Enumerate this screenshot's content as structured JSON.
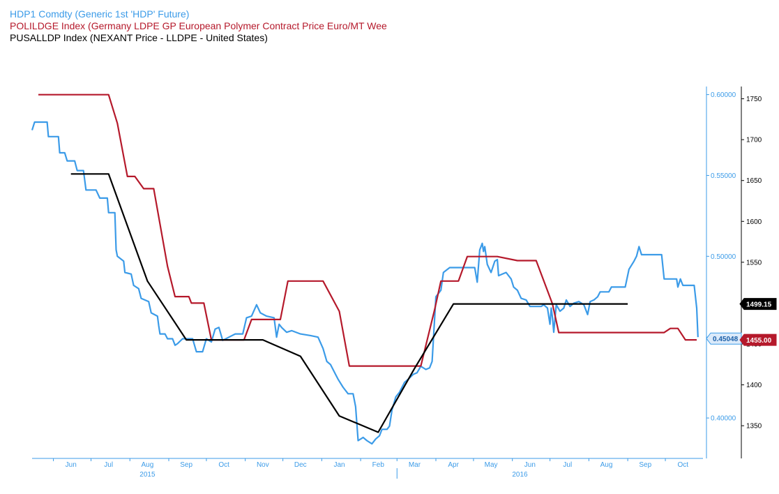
{
  "legend": [
    {
      "label": "HDP1 Comdty (Generic 1st 'HDP' Future)",
      "color": "#3b9be8"
    },
    {
      "label": "POLILDGE Index (Germany LDPE GP European Polymer Contract Price Euro/MT Wee",
      "color": "#b5192b"
    },
    {
      "label": "PUSALLDP Index (NEXANT Price - LLDPE - United States)",
      "color": "#000000"
    }
  ],
  "chart_data": {
    "type": "line",
    "title": "",
    "x_axis": {
      "type": "date",
      "range": [
        "2015-05-15",
        "2016-10-31"
      ],
      "tick_labels": [
        {
          "label": "Jun",
          "date": "2015-06-15"
        },
        {
          "label": "Jul",
          "date": "2015-07-15"
        },
        {
          "label": "Aug",
          "date": "2015-08-15"
        },
        {
          "label": "Sep",
          "date": "2015-09-15"
        },
        {
          "label": "Oct",
          "date": "2015-10-15"
        },
        {
          "label": "Nov",
          "date": "2015-11-15"
        },
        {
          "label": "Dec",
          "date": "2015-12-15"
        },
        {
          "label": "Jan",
          "date": "2016-01-15"
        },
        {
          "label": "Feb",
          "date": "2016-02-15"
        },
        {
          "label": "Mar",
          "date": "2016-03-15"
        },
        {
          "label": "Apr",
          "date": "2016-04-15"
        },
        {
          "label": "May",
          "date": "2016-05-15"
        },
        {
          "label": "Jun",
          "date": "2016-06-15"
        },
        {
          "label": "Jul",
          "date": "2016-07-15"
        },
        {
          "label": "Aug",
          "date": "2016-08-15"
        },
        {
          "label": "Sep",
          "date": "2016-09-15"
        },
        {
          "label": "Oct",
          "date": "2016-10-15"
        }
      ],
      "year_labels": [
        {
          "label": "2015",
          "date": "2015-08-15"
        },
        {
          "label": "2016",
          "date": "2016-06-07"
        }
      ],
      "year_divider": "2016-03-01"
    },
    "y_axes": {
      "left_blue": {
        "range": [
          0.375,
          0.605
        ],
        "ticks": [
          0.4,
          0.45,
          0.5,
          0.55,
          0.6
        ],
        "tick_labels": [
          "0.40000",
          "0.45000",
          "0.50000",
          "0.55000",
          "0.60000"
        ],
        "color": "#3b9be8"
      },
      "right_black": {
        "range": [
          1310,
          1765
        ],
        "ticks": [
          1350,
          1400,
          1450,
          1500,
          1550,
          1600,
          1650,
          1700,
          1750
        ],
        "tick_labels": [
          "1350",
          "1400",
          "1450",
          "1500",
          "1550",
          "1600",
          "1650",
          "1700",
          "1750"
        ],
        "color": "#000000"
      }
    },
    "series": [
      {
        "name": "HDP1 Comdty (Generic 1st 'HDP' Future)",
        "axis": "left_blue",
        "color": "#3b9be8",
        "last_value_label": "0.45048",
        "points": [
          [
            "2015-05-15",
            0.578
          ],
          [
            "2015-05-17",
            0.583
          ],
          [
            "2015-05-27",
            0.583
          ],
          [
            "2015-05-28",
            0.574
          ],
          [
            "2015-06-05",
            0.574
          ],
          [
            "2015-06-06",
            0.564
          ],
          [
            "2015-06-10",
            0.564
          ],
          [
            "2015-06-12",
            0.559
          ],
          [
            "2015-06-18",
            0.559
          ],
          [
            "2015-06-20",
            0.553
          ],
          [
            "2015-06-25",
            0.553
          ],
          [
            "2015-06-27",
            0.541
          ],
          [
            "2015-07-05",
            0.541
          ],
          [
            "2015-07-08",
            0.536
          ],
          [
            "2015-07-14",
            0.536
          ],
          [
            "2015-07-15",
            0.527
          ],
          [
            "2015-07-20",
            0.527
          ],
          [
            "2015-07-21",
            0.504
          ],
          [
            "2015-07-22",
            0.5
          ],
          [
            "2015-07-27",
            0.497
          ],
          [
            "2015-07-28",
            0.49
          ],
          [
            "2015-08-02",
            0.489
          ],
          [
            "2015-08-04",
            0.482
          ],
          [
            "2015-08-08",
            0.48
          ],
          [
            "2015-08-10",
            0.474
          ],
          [
            "2015-08-16",
            0.472
          ],
          [
            "2015-08-18",
            0.465
          ],
          [
            "2015-08-23",
            0.463
          ],
          [
            "2015-08-24",
            0.457
          ],
          [
            "2015-08-25",
            0.452
          ],
          [
            "2015-08-29",
            0.452
          ],
          [
            "2015-08-31",
            0.449
          ],
          [
            "2015-09-04",
            0.449
          ],
          [
            "2015-09-06",
            0.445
          ],
          [
            "2015-09-08",
            0.446
          ],
          [
            "2015-09-12",
            0.449
          ],
          [
            "2015-09-20",
            0.449
          ],
          [
            "2015-09-23",
            0.441
          ],
          [
            "2015-09-28",
            0.441
          ],
          [
            "2015-10-01",
            0.449
          ],
          [
            "2015-10-05",
            0.447
          ],
          [
            "2015-10-08",
            0.455
          ],
          [
            "2015-10-11",
            0.456
          ],
          [
            "2015-10-14",
            0.448
          ],
          [
            "2015-10-19",
            0.45
          ],
          [
            "2015-10-24",
            0.452
          ],
          [
            "2015-10-26",
            0.452
          ],
          [
            "2015-10-30",
            0.452
          ],
          [
            "2015-11-02",
            0.462
          ],
          [
            "2015-11-06",
            0.463
          ],
          [
            "2015-11-10",
            0.47
          ],
          [
            "2015-11-13",
            0.465
          ],
          [
            "2015-11-18",
            0.463
          ],
          [
            "2015-11-24",
            0.462
          ],
          [
            "2015-11-26",
            0.45
          ],
          [
            "2015-11-28",
            0.458
          ],
          [
            "2015-11-30",
            0.456
          ],
          [
            "2015-12-04",
            0.453
          ],
          [
            "2015-12-08",
            0.454
          ],
          [
            "2015-12-15",
            0.452
          ],
          [
            "2015-12-23",
            0.451
          ],
          [
            "2015-12-29",
            0.45
          ],
          [
            "2016-01-02",
            0.443
          ],
          [
            "2016-01-05",
            0.435
          ],
          [
            "2016-01-08",
            0.433
          ],
          [
            "2016-01-12",
            0.427
          ],
          [
            "2016-01-14",
            0.424
          ],
          [
            "2016-01-18",
            0.419
          ],
          [
            "2016-01-22",
            0.415
          ],
          [
            "2016-01-26",
            0.415
          ],
          [
            "2016-01-28",
            0.407
          ],
          [
            "2016-01-30",
            0.386
          ],
          [
            "2016-02-03",
            0.388
          ],
          [
            "2016-02-06",
            0.386
          ],
          [
            "2016-02-10",
            0.384
          ],
          [
            "2016-02-13",
            0.387
          ],
          [
            "2016-02-16",
            0.389
          ],
          [
            "2016-02-18",
            0.393
          ],
          [
            "2016-02-22",
            0.393
          ],
          [
            "2016-02-24",
            0.395
          ],
          [
            "2016-02-26",
            0.405
          ],
          [
            "2016-02-29",
            0.413
          ],
          [
            "2016-03-03",
            0.416
          ],
          [
            "2016-03-07",
            0.422
          ],
          [
            "2016-03-10",
            0.424
          ],
          [
            "2016-03-14",
            0.427
          ],
          [
            "2016-03-17",
            0.428
          ],
          [
            "2016-03-20",
            0.432
          ],
          [
            "2016-03-24",
            0.43
          ],
          [
            "2016-03-27",
            0.431
          ],
          [
            "2016-03-29",
            0.435
          ],
          [
            "2016-04-01",
            0.475
          ],
          [
            "2016-04-05",
            0.479
          ],
          [
            "2016-04-07",
            0.49
          ],
          [
            "2016-04-12",
            0.493
          ],
          [
            "2016-04-20",
            0.493
          ],
          [
            "2016-04-28",
            0.493
          ],
          [
            "2016-05-02",
            0.493
          ],
          [
            "2016-05-04",
            0.484
          ],
          [
            "2016-05-06",
            0.504
          ],
          [
            "2016-05-08",
            0.508
          ],
          [
            "2016-05-09",
            0.503
          ],
          [
            "2016-05-10",
            0.506
          ],
          [
            "2016-05-12",
            0.495
          ],
          [
            "2016-05-15",
            0.49
          ],
          [
            "2016-05-18",
            0.497
          ],
          [
            "2016-05-20",
            0.498
          ],
          [
            "2016-05-21",
            0.488
          ],
          [
            "2016-05-24",
            0.489
          ],
          [
            "2016-05-27",
            0.49
          ],
          [
            "2016-05-31",
            0.486
          ],
          [
            "2016-06-02",
            0.481
          ],
          [
            "2016-06-05",
            0.479
          ],
          [
            "2016-06-08",
            0.474
          ],
          [
            "2016-06-12",
            0.473
          ],
          [
            "2016-06-15",
            0.469
          ],
          [
            "2016-06-24",
            0.469
          ],
          [
            "2016-06-26",
            0.47
          ],
          [
            "2016-06-29",
            0.468
          ],
          [
            "2016-07-01",
            0.458
          ],
          [
            "2016-07-02",
            0.468
          ],
          [
            "2016-07-03",
            0.462
          ],
          [
            "2016-07-04",
            0.453
          ],
          [
            "2016-07-06",
            0.47
          ],
          [
            "2016-07-09",
            0.466
          ],
          [
            "2016-07-12",
            0.468
          ],
          [
            "2016-07-14",
            0.473
          ],
          [
            "2016-07-17",
            0.469
          ],
          [
            "2016-07-20",
            0.471
          ],
          [
            "2016-07-24",
            0.472
          ],
          [
            "2016-07-28",
            0.47
          ],
          [
            "2016-07-31",
            0.464
          ],
          [
            "2016-08-02",
            0.472
          ],
          [
            "2016-08-05",
            0.473
          ],
          [
            "2016-08-08",
            0.475
          ],
          [
            "2016-08-10",
            0.478
          ],
          [
            "2016-08-17",
            0.478
          ],
          [
            "2016-08-19",
            0.481
          ],
          [
            "2016-08-30",
            0.481
          ],
          [
            "2016-09-02",
            0.492
          ],
          [
            "2016-09-06",
            0.497
          ],
          [
            "2016-09-08",
            0.5
          ],
          [
            "2016-09-10",
            0.506
          ],
          [
            "2016-09-12",
            0.501
          ],
          [
            "2016-09-28",
            0.501
          ],
          [
            "2016-09-30",
            0.486
          ],
          [
            "2016-10-10",
            0.486
          ],
          [
            "2016-10-11",
            0.481
          ],
          [
            "2016-10-13",
            0.486
          ],
          [
            "2016-10-15",
            0.482
          ],
          [
            "2016-10-24",
            0.482
          ],
          [
            "2016-10-26",
            0.468
          ],
          [
            "2016-10-27",
            0.45
          ]
        ]
      },
      {
        "name": "POLILDGE Index (Germany LDPE GP European Polymer Contract Price Euro/MT Wee",
        "axis": "right_black",
        "color": "#b5192b",
        "last_value_label": "1455.00",
        "points": [
          [
            "2015-05-20",
            1755
          ],
          [
            "2015-07-15",
            1755
          ],
          [
            "2015-07-22",
            1720
          ],
          [
            "2015-07-30",
            1655
          ],
          [
            "2015-08-05",
            1655
          ],
          [
            "2015-08-12",
            1640
          ],
          [
            "2015-08-20",
            1640
          ],
          [
            "2015-08-31",
            1545
          ],
          [
            "2015-09-06",
            1508
          ],
          [
            "2015-09-17",
            1508
          ],
          [
            "2015-09-19",
            1500
          ],
          [
            "2015-09-29",
            1500
          ],
          [
            "2015-10-05",
            1455
          ],
          [
            "2015-10-31",
            1455
          ],
          [
            "2015-11-06",
            1480
          ],
          [
            "2015-11-29",
            1480
          ],
          [
            "2015-12-05",
            1527
          ],
          [
            "2016-01-02",
            1527
          ],
          [
            "2016-01-15",
            1490
          ],
          [
            "2016-01-23",
            1423
          ],
          [
            "2016-03-20",
            1423
          ],
          [
            "2016-03-31",
            1492
          ],
          [
            "2016-04-05",
            1527
          ],
          [
            "2016-04-19",
            1527
          ],
          [
            "2016-04-26",
            1557
          ],
          [
            "2016-05-20",
            1557
          ],
          [
            "2016-06-05",
            1552
          ],
          [
            "2016-06-20",
            1552
          ],
          [
            "2016-07-03",
            1499
          ],
          [
            "2016-07-08",
            1464
          ],
          [
            "2016-09-30",
            1464
          ],
          [
            "2016-10-05",
            1469
          ],
          [
            "2016-10-11",
            1469
          ],
          [
            "2016-10-17",
            1455
          ],
          [
            "2016-10-26",
            1455
          ]
        ]
      },
      {
        "name": "PUSALLDP Index (NEXANT Price - LLDPE - United States)",
        "axis": "right_black",
        "color": "#000000",
        "last_value_label": "1499.15",
        "points": [
          [
            "2015-06-15",
            1658
          ],
          [
            "2015-07-15",
            1658
          ],
          [
            "2015-08-15",
            1527
          ],
          [
            "2015-09-15",
            1455
          ],
          [
            "2015-11-15",
            1455
          ],
          [
            "2015-12-15",
            1435
          ],
          [
            "2016-01-15",
            1362
          ],
          [
            "2016-02-15",
            1342
          ],
          [
            "2016-03-15",
            1420
          ],
          [
            "2016-04-15",
            1499
          ],
          [
            "2016-09-01",
            1499
          ]
        ]
      }
    ]
  }
}
